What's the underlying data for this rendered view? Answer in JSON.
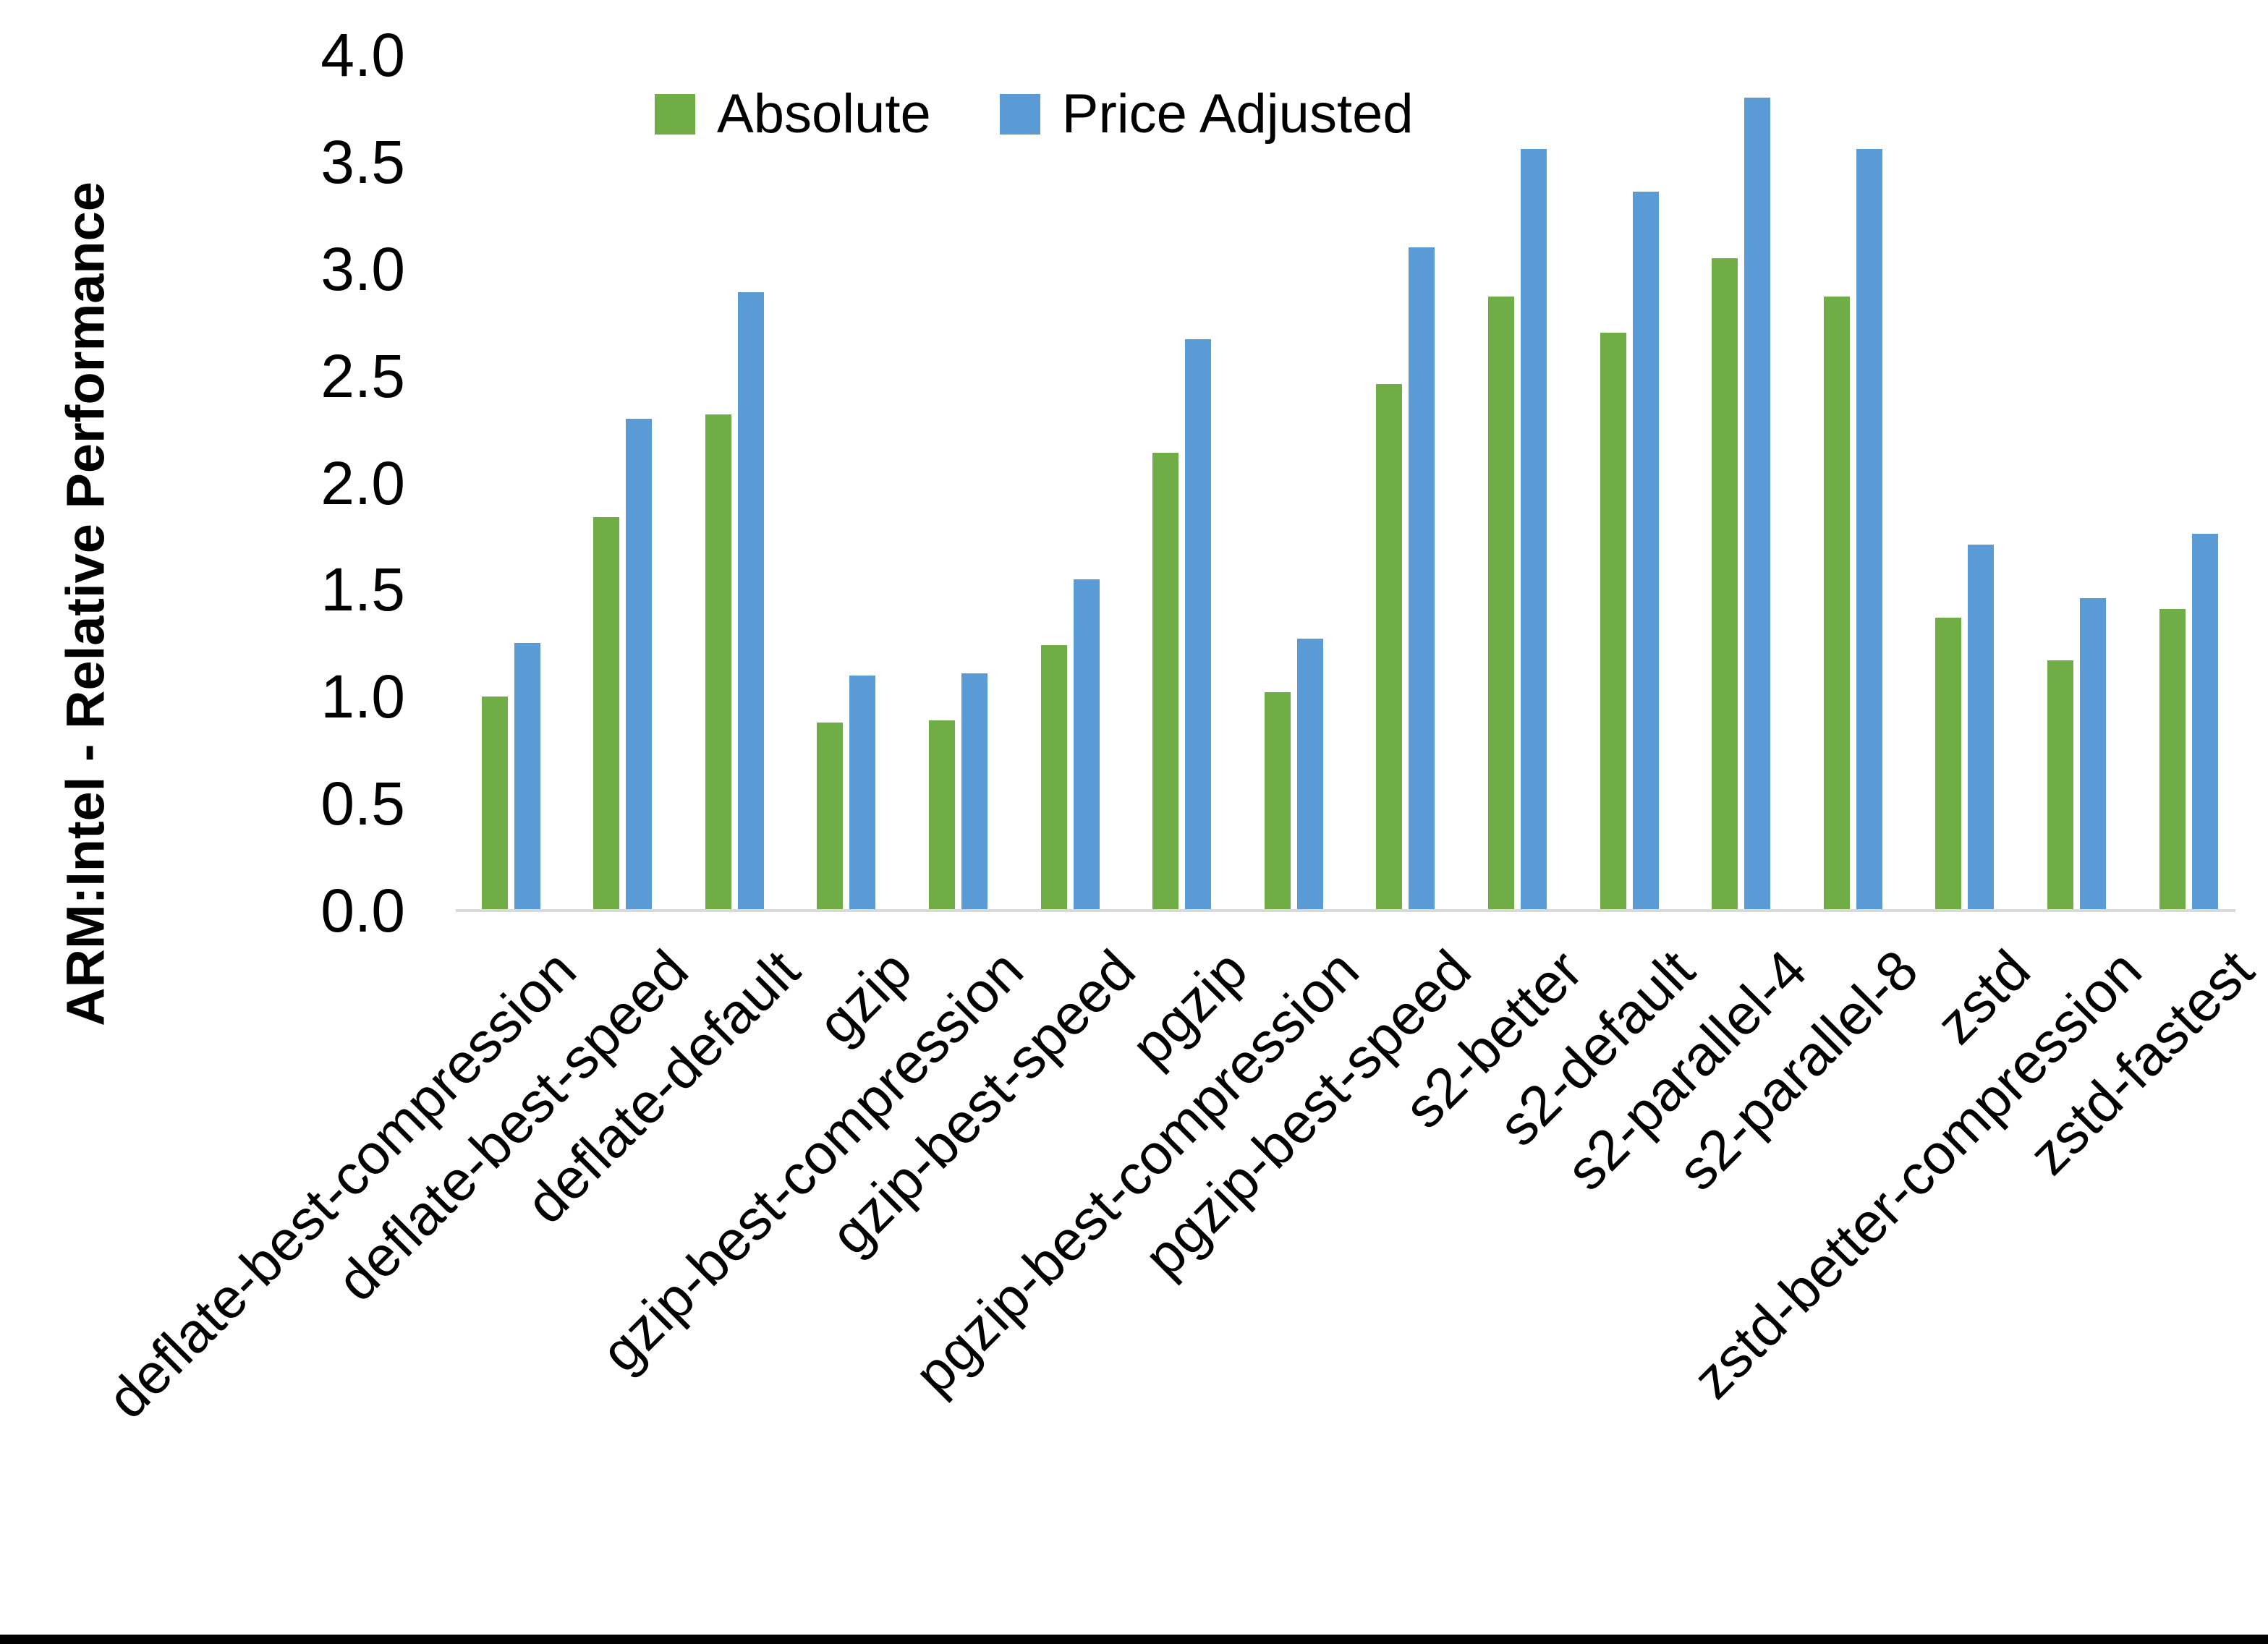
{
  "page": {
    "background_color": "#ffffff",
    "bottom_border_color": "#000000"
  },
  "chart_data": {
    "type": "bar",
    "title": "",
    "xlabel": "",
    "ylabel": "ARM:Intel - Relative Performance",
    "ylim": [
      0.0,
      4.0
    ],
    "ytick_step": 0.5,
    "ytick_labels": [
      "0.0",
      "0.5",
      "1.0",
      "1.5",
      "2.0",
      "2.5",
      "3.0",
      "3.5",
      "4.0"
    ],
    "grid": false,
    "legend_position": "top-center",
    "axis_line_color": "#d9d9d9",
    "categories": [
      "deflate-best-compression",
      "deflate-best-speed",
      "deflate-default",
      "gzip",
      "gzip-best-compression",
      "gzip-best-speed",
      "pgzip",
      "pgzip-best-compression",
      "pgzip-best-speed",
      "s2-better",
      "s2-default",
      "s2-parallel-4",
      "s2-parallel-8",
      "zstd",
      "zstd-better-compression",
      "zstd-fastest"
    ],
    "series": [
      {
        "name": "Absolute",
        "color": "#70AD47",
        "values": [
          1.0,
          1.84,
          2.32,
          0.88,
          0.89,
          1.24,
          2.14,
          1.02,
          2.46,
          2.87,
          2.7,
          3.05,
          2.87,
          1.37,
          1.17,
          1.41
        ]
      },
      {
        "name": "Price Adjusted",
        "color": "#5B9BD5",
        "values": [
          1.25,
          2.3,
          2.89,
          1.1,
          1.11,
          1.55,
          2.67,
          1.27,
          3.1,
          3.56,
          3.36,
          3.8,
          3.56,
          1.71,
          1.46,
          1.76
        ]
      }
    ]
  }
}
